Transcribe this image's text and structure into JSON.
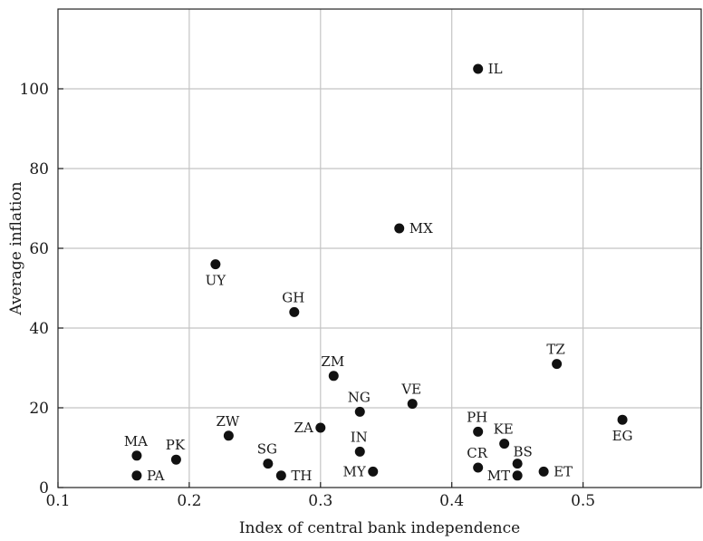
{
  "chart_data": {
    "type": "scatter",
    "title": "",
    "xlabel": "Index of central bank independence",
    "ylabel": "Average inflation",
    "xlim": [
      0.1,
      0.59
    ],
    "ylim": [
      0,
      120
    ],
    "xticks": [
      0.1,
      0.2,
      0.3,
      0.4,
      0.5
    ],
    "xtick_labels": [
      "0.1",
      "0.2",
      "0.3",
      "0.4",
      "0.5"
    ],
    "yticks": [
      0,
      20,
      40,
      60,
      80,
      100
    ],
    "ytick_labels": [
      "0",
      "20",
      "40",
      "60",
      "80",
      "100"
    ],
    "grid": true,
    "marker_color": "#111111",
    "points": [
      {
        "label": "IL",
        "x": 0.42,
        "y": 105,
        "label_pos": "right"
      },
      {
        "label": "MX",
        "x": 0.36,
        "y": 65,
        "label_pos": "right"
      },
      {
        "label": "UY",
        "x": 0.22,
        "y": 56,
        "label_pos": "below"
      },
      {
        "label": "GH",
        "x": 0.28,
        "y": 44,
        "label_pos": "above"
      },
      {
        "label": "TZ",
        "x": 0.48,
        "y": 31,
        "label_pos": "above"
      },
      {
        "label": "ZM",
        "x": 0.31,
        "y": 28,
        "label_pos": "above"
      },
      {
        "label": "VE",
        "x": 0.37,
        "y": 21,
        "label_pos": "above"
      },
      {
        "label": "NG",
        "x": 0.33,
        "y": 19,
        "label_pos": "above"
      },
      {
        "label": "EG",
        "x": 0.53,
        "y": 17,
        "label_pos": "below"
      },
      {
        "label": "ZA",
        "x": 0.3,
        "y": 15,
        "label_pos": "left"
      },
      {
        "label": "PH",
        "x": 0.42,
        "y": 14,
        "label_pos": "above"
      },
      {
        "label": "ZW",
        "x": 0.23,
        "y": 13,
        "label_pos": "above"
      },
      {
        "label": "KE",
        "x": 0.44,
        "y": 11,
        "label_pos": "above"
      },
      {
        "label": "IN",
        "x": 0.33,
        "y": 9,
        "label_pos": "above"
      },
      {
        "label": "MA",
        "x": 0.16,
        "y": 8,
        "label_pos": "above"
      },
      {
        "label": "PK",
        "x": 0.19,
        "y": 7,
        "label_pos": "above"
      },
      {
        "label": "SG",
        "x": 0.26,
        "y": 6,
        "label_pos": "above"
      },
      {
        "label": "BS",
        "x": 0.45,
        "y": 6,
        "label_pos": "above-right"
      },
      {
        "label": "CR",
        "x": 0.42,
        "y": 5,
        "label_pos": "above"
      },
      {
        "label": "MY",
        "x": 0.34,
        "y": 4,
        "label_pos": "left"
      },
      {
        "label": "ET",
        "x": 0.47,
        "y": 4,
        "label_pos": "right"
      },
      {
        "label": "PA",
        "x": 0.16,
        "y": 3,
        "label_pos": "right"
      },
      {
        "label": "TH",
        "x": 0.27,
        "y": 3,
        "label_pos": "right"
      },
      {
        "label": "MT",
        "x": 0.45,
        "y": 3,
        "label_pos": "left"
      }
    ]
  }
}
